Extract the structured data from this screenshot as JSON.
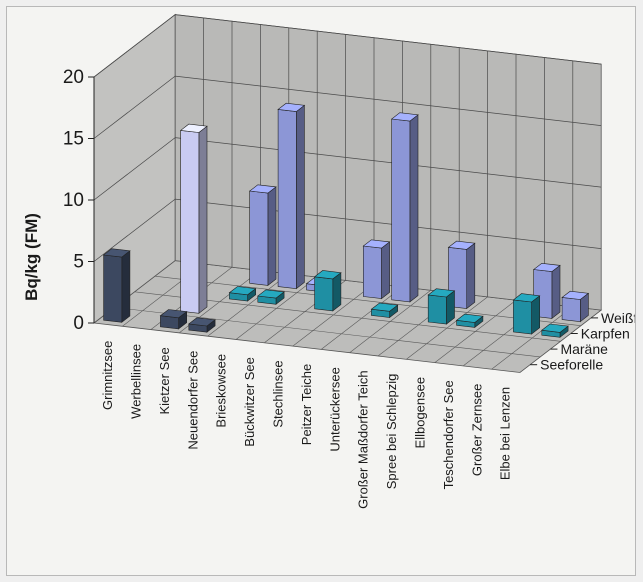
{
  "chart_data": {
    "type": "bar",
    "title": "",
    "ylabel": "Bq/kg (FM)",
    "ylim": [
      0,
      20
    ],
    "yticks": [
      "0",
      "5",
      "10",
      "15",
      "20"
    ],
    "categories": [
      "Grimnitzsee",
      "Werbellinsee",
      "Kietzer See",
      "Neuendorfer See",
      "Brieskowsee",
      "Bückwitzer See",
      "Stechlinsee",
      "Peitzer Teiche",
      "Unterückersee",
      "Großer Maßdorfer Teich",
      "Spree bei Schlepzig",
      "Ellbogensee",
      "Teschendorfer See",
      "Großer Zernsee",
      "Elbe bei Lenzen"
    ],
    "series": [
      {
        "name": "Seeforelle",
        "color": "#3c4860",
        "values": [
          5.3,
          null,
          0.9,
          0.5,
          null,
          null,
          null,
          null,
          null,
          null,
          null,
          null,
          null,
          null,
          null
        ]
      },
      {
        "name": "Maräne",
        "color": "#c9cbf2",
        "values": [
          null,
          null,
          14.7,
          null,
          null,
          null,
          null,
          null,
          null,
          null,
          null,
          null,
          null,
          null,
          null
        ]
      },
      {
        "name": "Karpfen",
        "color": "#1f8fa3",
        "values": [
          null,
          null,
          null,
          0.5,
          0.5,
          null,
          2.6,
          null,
          0.5,
          null,
          2.2,
          0.4,
          null,
          2.6,
          0.4
        ]
      },
      {
        "name": "Weißfisch",
        "color": "#8c96d6",
        "values": [
          null,
          null,
          null,
          7.5,
          14.4,
          0.5,
          null,
          4.1,
          14.7,
          null,
          4.8,
          null,
          null,
          3.8,
          1.8
        ]
      }
    ],
    "grid": true,
    "legend": "right"
  }
}
